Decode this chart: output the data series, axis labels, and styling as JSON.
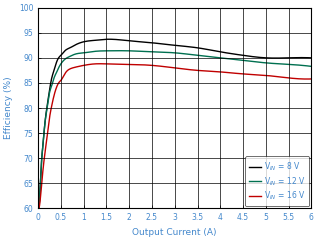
{
  "title": "",
  "xlabel": "Output Current (A)",
  "ylabel": "Efficiency (%)",
  "xlim": [
    0,
    6
  ],
  "ylim": [
    60,
    100
  ],
  "xticks": [
    0,
    0.5,
    1,
    1.5,
    2,
    2.5,
    3,
    3.5,
    4,
    4.5,
    5,
    5.5,
    6
  ],
  "yticks": [
    60,
    65,
    70,
    75,
    80,
    85,
    90,
    95,
    100
  ],
  "legend": [
    {
      "label": "V$_{IN}$ = 8 V",
      "color": "#000000"
    },
    {
      "label": "V$_{IN}$ = 12 V",
      "color": "#007050"
    },
    {
      "label": "V$_{IN}$ = 16 V",
      "color": "#c00000"
    }
  ],
  "curves": {
    "vin8": {
      "color": "#000000",
      "x": [
        0.02,
        0.05,
        0.08,
        0.1,
        0.15,
        0.2,
        0.25,
        0.3,
        0.35,
        0.4,
        0.45,
        0.5,
        0.6,
        0.7,
        0.8,
        1.0,
        1.25,
        1.5,
        2.0,
        2.5,
        3.0,
        3.5,
        4.0,
        4.5,
        5.0,
        5.5,
        6.0
      ],
      "y": [
        60,
        65,
        70,
        72,
        77,
        80.5,
        83.5,
        86,
        87.5,
        89,
        90,
        90.5,
        91.5,
        92,
        92.5,
        93.2,
        93.5,
        93.7,
        93.4,
        93.0,
        92.5,
        92.0,
        91.2,
        90.5,
        90.0,
        90.0,
        90.0
      ]
    },
    "vin12": {
      "color": "#007050",
      "x": [
        0.02,
        0.05,
        0.08,
        0.1,
        0.15,
        0.2,
        0.25,
        0.3,
        0.35,
        0.4,
        0.45,
        0.5,
        0.6,
        0.7,
        0.8,
        1.0,
        1.25,
        1.5,
        2.0,
        2.5,
        3.0,
        3.5,
        4.0,
        4.5,
        5.0,
        5.5,
        6.0
      ],
      "y": [
        60,
        65,
        70,
        72,
        77,
        80,
        83,
        84.5,
        86,
        87,
        88,
        88.8,
        89.8,
        90.3,
        90.7,
        91.0,
        91.3,
        91.4,
        91.4,
        91.2,
        91.0,
        90.5,
        90.0,
        89.5,
        89.0,
        88.7,
        88.3
      ]
    },
    "vin16": {
      "color": "#c00000",
      "x": [
        0.02,
        0.05,
        0.08,
        0.1,
        0.15,
        0.2,
        0.25,
        0.3,
        0.35,
        0.4,
        0.45,
        0.5,
        0.6,
        0.7,
        0.8,
        1.0,
        1.25,
        1.5,
        2.0,
        2.5,
        3.0,
        3.5,
        4.0,
        4.5,
        5.0,
        5.5,
        6.0
      ],
      "y": [
        60,
        62,
        65,
        67,
        71,
        74.5,
        78,
        80.5,
        82.5,
        84,
        85,
        85.5,
        87.0,
        87.8,
        88.1,
        88.5,
        88.8,
        88.8,
        88.7,
        88.5,
        88.0,
        87.5,
        87.2,
        86.8,
        86.5,
        86.0,
        85.8
      ]
    }
  },
  "background_color": "#ffffff",
  "grid_color": "#000000",
  "font_color": "#4488cc",
  "label_fontsize": 6.5,
  "tick_fontsize": 5.5,
  "legend_fontsize": 5.5,
  "linewidth": 1.0
}
